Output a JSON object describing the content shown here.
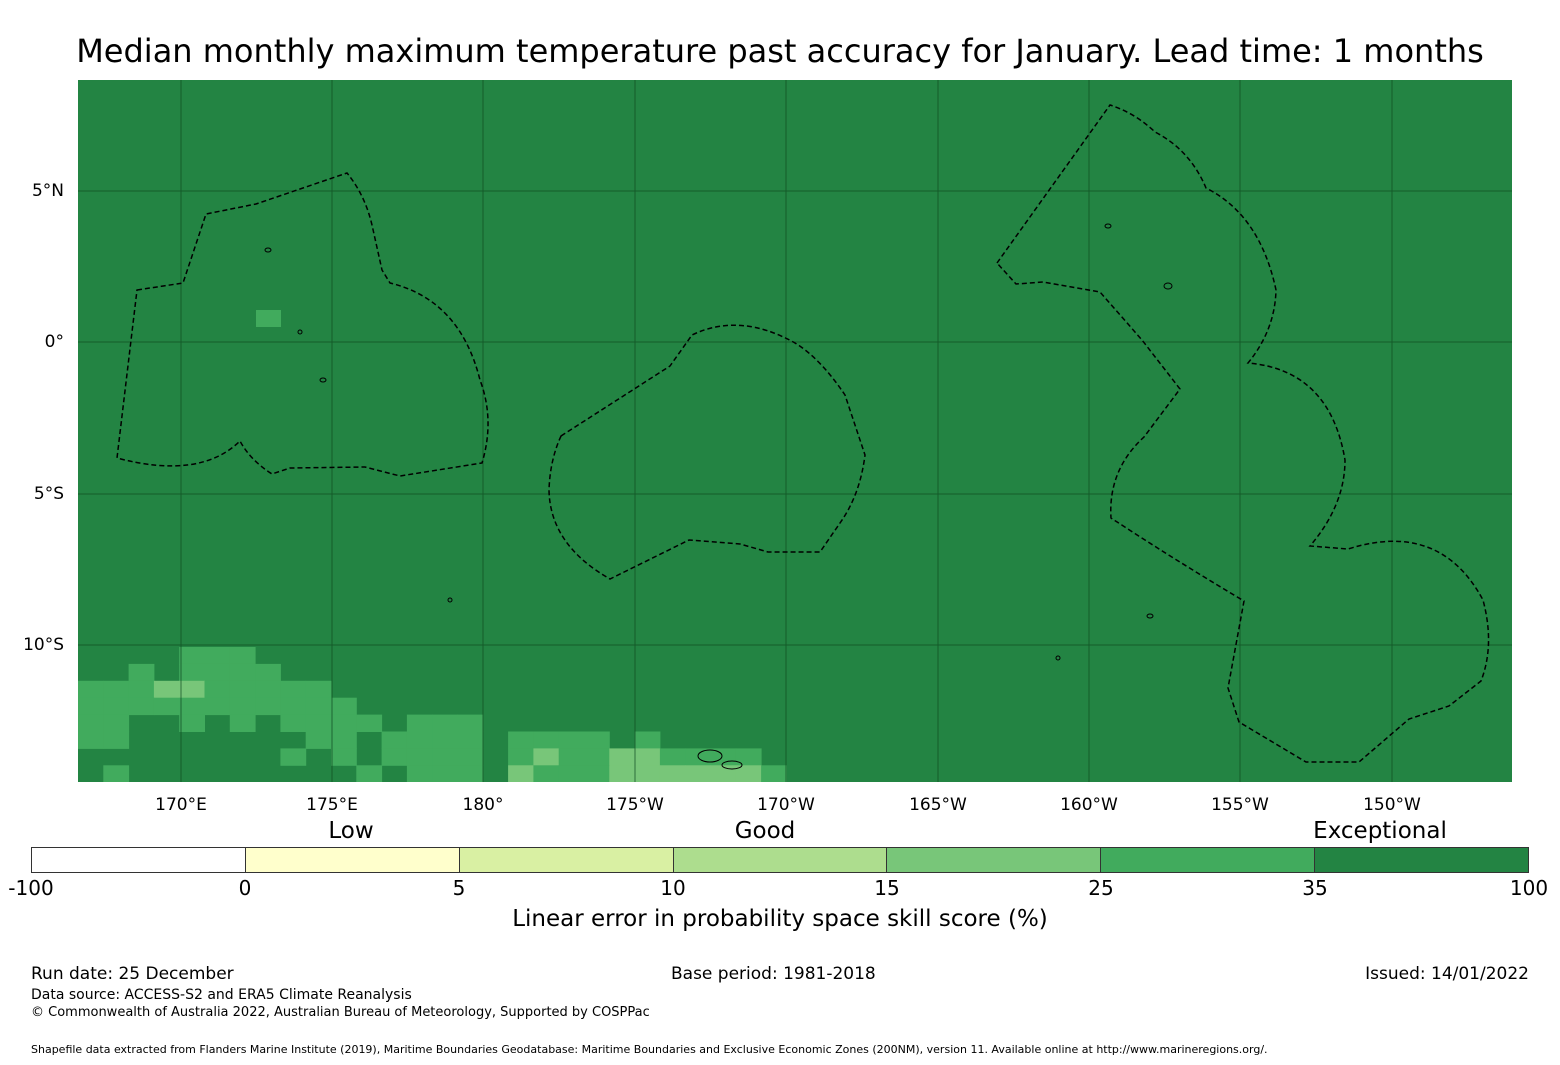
{
  "title": "Median monthly maximum temperature past accuracy for January. Lead time: 1 months",
  "map": {
    "background_color": "#238443",
    "lat_labels": [
      "5°N",
      "0°",
      "5°S",
      "10°S"
    ],
    "lon_labels": [
      "170°E",
      "175°E",
      "180°",
      "175°W",
      "170°W",
      "165°W",
      "160°W",
      "155°W",
      "150°W"
    ],
    "skill_grid_legend": {
      "D": "35 to 100",
      "M": "25 to 35",
      "L": "15 to 25"
    },
    "skill_grid_rows_south": [
      "DDDDMMMDDDDDDDDDDDDDDDDDDDDDD",
      "DDMDMMMMDDDDDDDDDDDDDDDDDDDDD",
      "MMMLLMMMMMDDDDDDDDDDDDDDDDDDD",
      "MMMMMMMMMMMDDDDDDDDDDDDDDDDDD",
      "MMDDMDMDMMMMDMMMDDDDDDDDDDDDD",
      "MMDDDDDDDMMDMMMMDMMMMDMDDDDDD",
      "DDDDDDDDMDMDMMMMDMLMMLLMMMMDD",
      "DMDDDDDDDDDMDMMMDLMMMLLLLLLMD"
    ]
  },
  "colorbar": {
    "category_labels": [
      "Low",
      "Good",
      "Exceptional"
    ],
    "ticks": [
      "-100",
      "0",
      "5",
      "10",
      "15",
      "25",
      "35",
      "100"
    ],
    "colors": [
      "#ffffff",
      "#ffffcc",
      "#d9f0a3",
      "#addd8e",
      "#78c679",
      "#41ab5d",
      "#238443"
    ],
    "label": "Linear error in probability space skill score (%)"
  },
  "footer": {
    "run_date": "Run date: 25 December",
    "base_period": "Base period: 1981-2018",
    "issued": "Issued: 14/01/2022",
    "data_source": "Data source: ACCESS-S2 and ERA5 Climate Reanalysis",
    "copyright": "© Commonwealth of Australia 2022, Australian Bureau of Meteorology, Supported by COSPPac",
    "shapefile": "Shapefile data extracted from Flanders Marine Institute (2019), Maritime Boundaries Geodatabase: Maritime Boundaries and Exclusive Economic Zones (200NM), version 11. Available online at http://www.marineregions.org/."
  }
}
